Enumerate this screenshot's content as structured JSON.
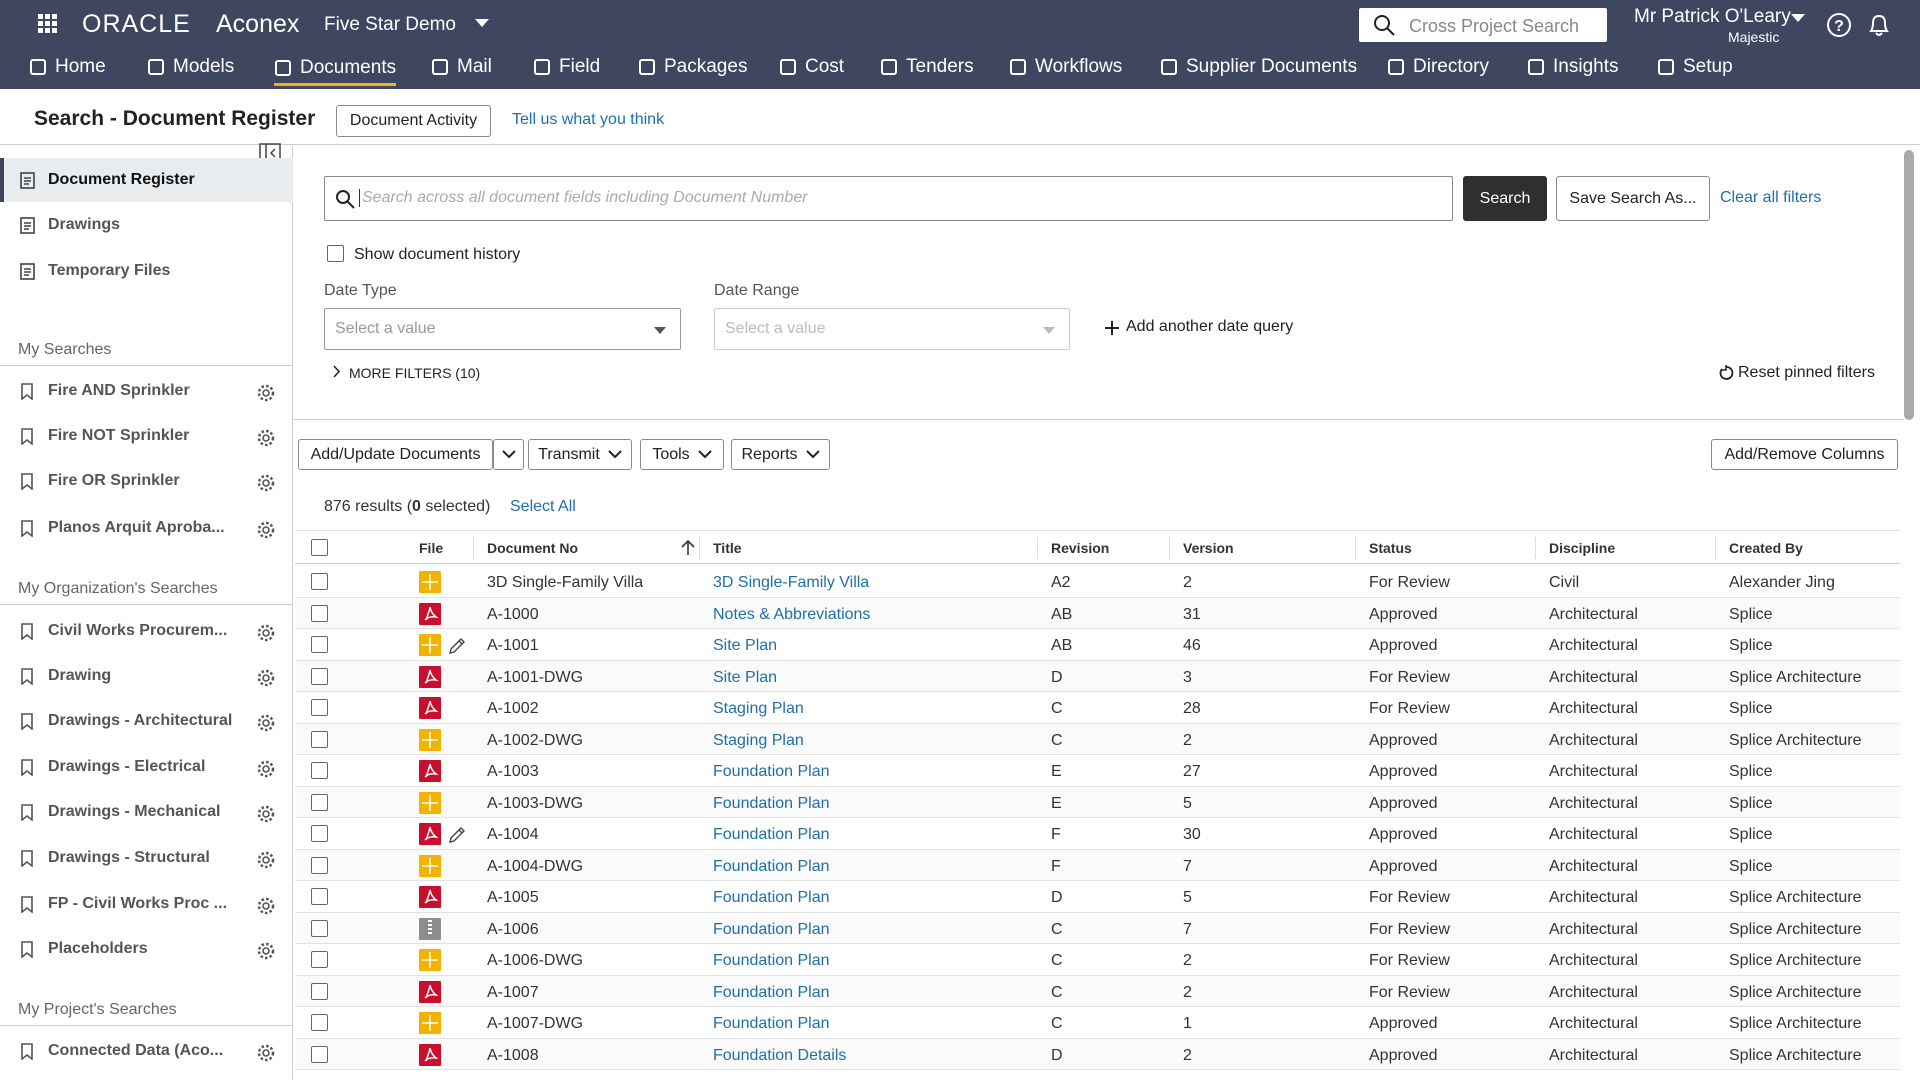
{
  "header": {
    "brand_oracle": "ORACLE",
    "brand_product": "Aconex",
    "project": "Five Star Demo",
    "search_placeholder": "Cross Project Search",
    "user": "Mr Patrick O'Leary",
    "org": "Majestic"
  },
  "nav": [
    "Home",
    "Models",
    "Documents",
    "Mail",
    "Field",
    "Packages",
    "Cost",
    "Tenders",
    "Workflows",
    "Supplier Documents",
    "Directory",
    "Insights",
    "Setup"
  ],
  "page": {
    "title": "Search - Document Register",
    "activity_button": "Document Activity",
    "feedback_link": "Tell us what you think"
  },
  "sidebar": {
    "items": [
      "Document Register",
      "Drawings",
      "Temporary Files"
    ],
    "sections": [
      {
        "title": "My Searches",
        "items": [
          "Fire AND Sprinkler",
          "Fire NOT Sprinkler",
          "Fire OR Sprinkler",
          "Planos Arquit Aproba..."
        ]
      },
      {
        "title": "My Organization's Searches",
        "items": [
          "Civil Works Procurem...",
          "Drawing",
          "Drawings - Architectural",
          "Drawings - Electrical",
          "Drawings - Mechanical",
          "Drawings - Structural",
          "FP - Civil Works Proc ...",
          "Placeholders"
        ]
      },
      {
        "title": "My Project's Searches",
        "items": [
          "Connected Data (Aco..."
        ]
      }
    ]
  },
  "search": {
    "placeholder": "Search across all document fields including Document Number",
    "search_button": "Search",
    "save_button": "Save Search As...",
    "clear_link": "Clear all filters",
    "history_label": "Show document history",
    "date_type_label": "Date Type",
    "date_type_placeholder": "Select a value",
    "date_range_label": "Date Range",
    "date_range_placeholder": "Select a value",
    "add_date_query": "Add another date query",
    "more_filters": "MORE FILTERS (10)",
    "reset_filters": "Reset pinned filters"
  },
  "toolbar": {
    "add_update": "Add/Update Documents",
    "transmit": "Transmit",
    "tools": "Tools",
    "reports": "Reports",
    "columns": "Add/Remove Columns"
  },
  "results": {
    "count": "876 results (",
    "selected": "0",
    "suffix": " selected)",
    "select_all": "Select All"
  },
  "table": {
    "columns": [
      "File",
      "Document No",
      "Title",
      "Revision",
      "Version",
      "Status",
      "Discipline",
      "Created By"
    ],
    "rows": [
      [
        "3D Single-Family Villa",
        "3D Single-Family Villa",
        "A2",
        2,
        "For Review",
        "Civil",
        "Alexander Jing"
      ],
      [
        "A-1000",
        "Notes & Abbreviations",
        "AB",
        31,
        "Approved",
        "Architectural",
        "Splice"
      ],
      [
        "A-1001",
        "Site Plan",
        "AB",
        46,
        "Approved",
        "Architectural",
        "Splice"
      ],
      [
        "A-1001-DWG",
        "Site Plan",
        "D",
        3,
        "For Review",
        "Architectural",
        "Splice Architecture"
      ],
      [
        "A-1002",
        "Staging Plan",
        "C",
        28,
        "For Review",
        "Architectural",
        "Splice"
      ],
      [
        "A-1002-DWG",
        "Staging Plan",
        "C",
        2,
        "Approved",
        "Architectural",
        "Splice Architecture"
      ],
      [
        "A-1003",
        "Foundation Plan",
        "E",
        27,
        "Approved",
        "Architectural",
        "Splice"
      ],
      [
        "A-1003-DWG",
        "Foundation Plan",
        "E",
        5,
        "Approved",
        "Architectural",
        "Splice"
      ],
      [
        "A-1004",
        "Foundation Plan",
        "F",
        30,
        "Approved",
        "Architectural",
        "Splice"
      ],
      [
        "A-1004-DWG",
        "Foundation Plan",
        "F",
        7,
        "Approved",
        "Architectural",
        "Splice"
      ],
      [
        "A-1005",
        "Foundation Plan",
        "D",
        5,
        "For Review",
        "Architectural",
        "Splice Architecture"
      ],
      [
        "A-1006",
        "Foundation Plan",
        "C",
        7,
        "For Review",
        "Architectural",
        "Splice Architecture"
      ],
      [
        "A-1006-DWG",
        "Foundation Plan",
        "C",
        2,
        "For Review",
        "Architectural",
        "Splice Architecture"
      ],
      [
        "A-1007",
        "Foundation Plan",
        "C",
        2,
        "For Review",
        "Architectural",
        "Splice Architecture"
      ],
      [
        "A-1007-DWG",
        "Foundation Plan",
        "C",
        1,
        "Approved",
        "Architectural",
        "Splice Architecture"
      ],
      [
        "A-1008",
        "Foundation Details",
        "D",
        2,
        "Approved",
        "Architectural",
        "Splice Architecture"
      ]
    ]
  }
}
